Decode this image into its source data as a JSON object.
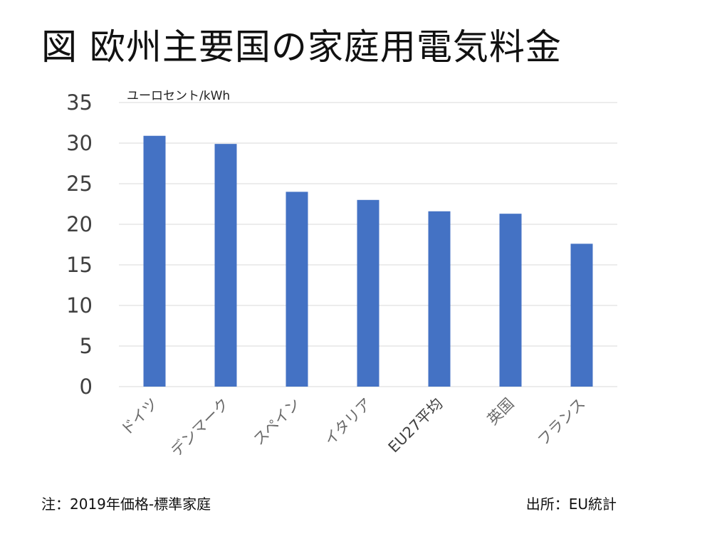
{
  "title": "図 欧州主要国の家庭用電気料金",
  "note": "注：2019年価格-標準家庭",
  "source": "出所：EU統計",
  "chart_data": {
    "type": "bar",
    "title": "図 欧州主要国の家庭用電気料金",
    "ylabel": "ユーロセント/kWh",
    "xlabel": "",
    "categories": [
      "ドイツ",
      "デンマーク",
      "スペイン",
      "イタリア",
      "EU27平均",
      "英国",
      "フランス"
    ],
    "values": [
      30.9,
      29.9,
      24.0,
      23.0,
      21.6,
      21.3,
      17.6
    ],
    "ylim": [
      0,
      35
    ],
    "yticks": [
      0,
      5,
      10,
      15,
      20,
      25,
      30,
      35
    ],
    "grid": true,
    "bar_color": "#4472c4",
    "gridline_color": "#d9d9d9"
  }
}
